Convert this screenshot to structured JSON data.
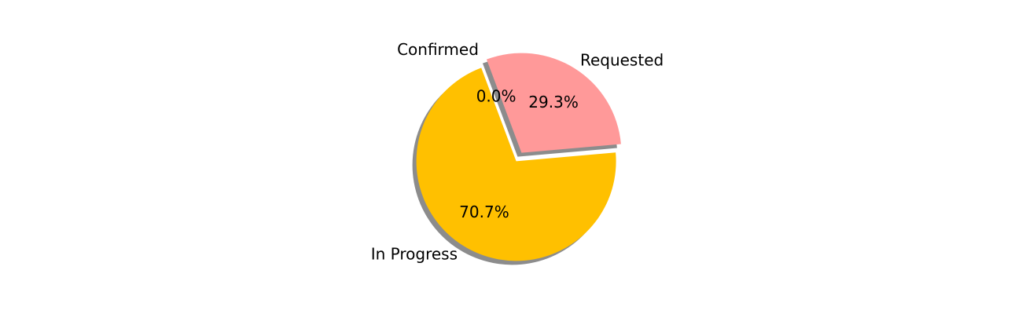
{
  "chart_data": {
    "type": "pie",
    "title": "",
    "start_angle_deg": 5,
    "counterclock": true,
    "shadow": true,
    "slices": [
      {
        "label": "Requested",
        "value": 29.3,
        "percent_label": "29.3%",
        "color": "#ff9999",
        "explode": 0.05
      },
      {
        "label": "Confirmed",
        "value": 0.0,
        "percent_label": "0.0%",
        "color": "#66b3ff",
        "explode": 0.05
      },
      {
        "label": "In Progress",
        "value": 70.7,
        "percent_label": "70.7%",
        "color": "#ffc000",
        "explode": 0.05
      }
    ]
  }
}
